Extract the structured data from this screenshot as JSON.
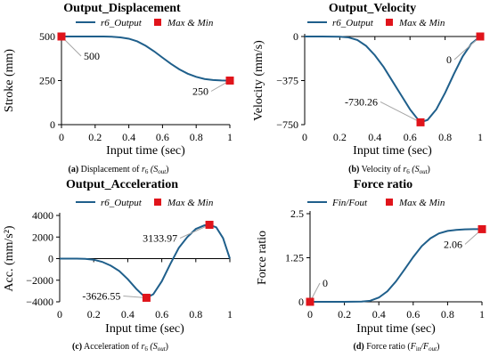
{
  "colors": {
    "series": "#1f5f8b",
    "marker": "#e0141b",
    "leader": "#a6a6a6",
    "axis": "#000000"
  },
  "chart_data": [
    {
      "type": "line",
      "title": "Output_Displacement",
      "caption": {
        "tag": "(a)",
        "text": "Displacement of ",
        "var": "r",
        "sub": "6",
        "paren": " (S",
        "psub": "out",
        "close": ")"
      },
      "xlabel": "Input time (sec)",
      "ylabel": "Stroke (mm)",
      "xlim": [
        0,
        1
      ],
      "ylim": [
        0,
        500
      ],
      "xticks": [
        0,
        0.2,
        0.4,
        0.6,
        0.8,
        1
      ],
      "xtick_labels": [
        "0",
        "0.2",
        "0.4",
        "0.6",
        "0.8",
        "1"
      ],
      "yticks": [
        0,
        250,
        500
      ],
      "ytick_labels": [
        "0",
        "250",
        "500"
      ],
      "legend": [
        "r6_Output",
        "Max & Min"
      ],
      "series": [
        {
          "name": "r6_Output",
          "x": [
            0,
            0.1,
            0.2,
            0.25,
            0.3,
            0.35,
            0.4,
            0.45,
            0.5,
            0.55,
            0.6,
            0.65,
            0.7,
            0.75,
            0.8,
            0.85,
            0.9,
            0.95,
            1.0
          ],
          "y": [
            500,
            500,
            500,
            499.8,
            498.5,
            495,
            487.5,
            472.5,
            447.5,
            416,
            380,
            345,
            314,
            289,
            271,
            259,
            253,
            250.5,
            250
          ]
        }
      ],
      "markers": [
        {
          "x": 0,
          "y": 500,
          "label": "500"
        },
        {
          "x": 1,
          "y": 250,
          "label": "250"
        }
      ]
    },
    {
      "type": "line",
      "title": "Output_Velocity",
      "caption": {
        "tag": "(b)",
        "text": "Velocity of ",
        "var": "r",
        "sub": "6",
        "paren": " (S",
        "psub": "out",
        "close": ")"
      },
      "xlabel": "Input time (sec)",
      "ylabel": "Velocity (mm/s)",
      "xlim": [
        0,
        1
      ],
      "ylim": [
        -750,
        0
      ],
      "xticks": [
        0,
        0.2,
        0.4,
        0.6,
        0.8,
        1
      ],
      "xtick_labels": [
        "0",
        "0.2",
        "0.4",
        "0.6",
        "0.8",
        "1"
      ],
      "yticks": [
        -750,
        -375,
        0
      ],
      "ytick_labels": [
        "−750",
        "−375",
        "0"
      ],
      "legend": [
        "r6_Output",
        "Max & Min"
      ],
      "series": [
        {
          "name": "r6_Output",
          "x": [
            0,
            0.1,
            0.2,
            0.25,
            0.3,
            0.35,
            0.4,
            0.45,
            0.5,
            0.55,
            0.6,
            0.65,
            0.66,
            0.7,
            0.75,
            0.8,
            0.85,
            0.9,
            0.95,
            1.0
          ],
          "y": [
            0,
            0,
            -2,
            -8,
            -30,
            -80,
            -160,
            -260,
            -380,
            -500,
            -620,
            -715,
            -730.26,
            -710,
            -620,
            -480,
            -320,
            -170,
            -60,
            0
          ]
        }
      ],
      "markers": [
        {
          "x": 0.66,
          "y": -730.26,
          "label": "-730.26"
        },
        {
          "x": 1,
          "y": 0,
          "label": "0"
        }
      ]
    },
    {
      "type": "line",
      "title": "Output_Acceleration",
      "caption": {
        "tag": "(c)",
        "text": "Acceleration of ",
        "var": "r",
        "sub": "6",
        "paren": " (S",
        "psub": "out",
        "close": ")"
      },
      "xlabel": "Input time (sec)",
      "ylabel": "Acc. (mm/s²)",
      "xlim": [
        0,
        1
      ],
      "ylim": [
        -4000,
        4000
      ],
      "xticks": [
        0,
        0.2,
        0.4,
        0.6,
        0.8,
        1
      ],
      "xtick_labels": [
        "0",
        "0.2",
        "0.4",
        "0.6",
        "0.8",
        "1"
      ],
      "yticks": [
        -4000,
        -2000,
        0,
        2000,
        4000
      ],
      "ytick_labels": [
        "−4000",
        "−2000",
        "0",
        "2000",
        "4000"
      ],
      "legend": [
        "r6_Output",
        "Max & Min"
      ],
      "series": [
        {
          "name": "r6_Output",
          "x": [
            0,
            0.1,
            0.15,
            0.2,
            0.25,
            0.3,
            0.35,
            0.4,
            0.45,
            0.5,
            0.51,
            0.55,
            0.6,
            0.65,
            0.7,
            0.75,
            0.8,
            0.85,
            0.88,
            0.92,
            0.96,
            1.0
          ],
          "y": [
            0,
            0,
            -20,
            -100,
            -300,
            -650,
            -1150,
            -1900,
            -2800,
            -3550,
            -3626.55,
            -3300,
            -2100,
            -500,
            1000,
            2000,
            2750,
            3080,
            3133.97,
            2900,
            1900,
            0
          ]
        }
      ],
      "markers": [
        {
          "x": 0.51,
          "y": -3626.55,
          "label": "-3626.55"
        },
        {
          "x": 0.88,
          "y": 3133.97,
          "label": "3133.97"
        }
      ]
    },
    {
      "type": "line",
      "title": "Force ratio",
      "caption": {
        "tag": "(d)",
        "text": "Force ratio (",
        "var": "F",
        "sub": "in",
        "paren": "/F",
        "psub": "out",
        "close": ")"
      },
      "xlabel": "Input time (sec)",
      "ylabel": "Force ratio",
      "xlim": [
        0,
        1
      ],
      "ylim": [
        0,
        2.5
      ],
      "xticks": [
        0,
        0.2,
        0.4,
        0.6,
        0.8,
        1
      ],
      "xtick_labels": [
        "0",
        "0.2",
        "0.4",
        "0.6",
        "0.8",
        "1"
      ],
      "yticks": [
        0,
        1.25,
        2.5
      ],
      "ytick_labels": [
        "0",
        "1.25",
        "2.5"
      ],
      "legend": [
        "Fin/Fout",
        "Max & Min"
      ],
      "series": [
        {
          "name": "Fin/Fout",
          "x": [
            0,
            0.1,
            0.2,
            0.3,
            0.35,
            0.4,
            0.45,
            0.5,
            0.55,
            0.6,
            0.65,
            0.7,
            0.75,
            0.8,
            0.85,
            0.9,
            0.95,
            1.0
          ],
          "y": [
            0,
            0,
            0,
            0.005,
            0.03,
            0.12,
            0.3,
            0.58,
            0.92,
            1.27,
            1.58,
            1.8,
            1.94,
            2.01,
            2.04,
            2.055,
            2.06,
            2.06
          ]
        }
      ],
      "markers": [
        {
          "x": 0,
          "y": 0,
          "label": "0"
        },
        {
          "x": 1,
          "y": 2.06,
          "label": "2.06"
        }
      ]
    }
  ]
}
